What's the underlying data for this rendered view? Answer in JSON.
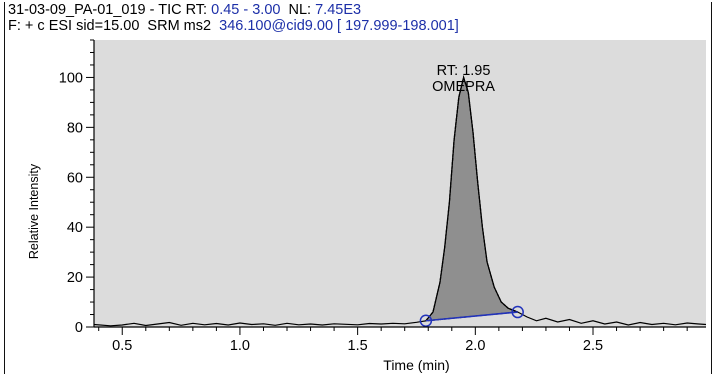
{
  "header": {
    "line1_prefix": "31-03-09_PA-01_019 - TIC RT: ",
    "rt_range": "0.45 - 3.00",
    "nl_label": "  NL: ",
    "nl_value": "7.45E3",
    "line2_prefix": "F: + c ESI sid=15.00  SRM ms2  ",
    "line2_value": "346.100@cid9.00 [ 197.999-198.001]"
  },
  "colors": {
    "plot_background": "#dcdcdc",
    "peak_fill": "#8f8f8f",
    "baseline_marker": "#2233bb",
    "trace": "#000000"
  },
  "chart_data": {
    "type": "area",
    "xlabel": "Time (min)",
    "ylabel": "Relative Intensity",
    "xlim": [
      0.38,
      2.98
    ],
    "ylim": [
      0,
      115
    ],
    "xticks": [
      "0.5",
      "1.0",
      "1.5",
      "2.0",
      "2.5"
    ],
    "yticks": [
      "0",
      "20",
      "40",
      "60",
      "80",
      "100"
    ],
    "grid": false,
    "peak": {
      "rt_label": "RT: 1.95",
      "compound_label": "OMEPRA",
      "apex_time": 1.95,
      "apex_intensity": 100,
      "baseline_start": [
        1.79,
        2.5
      ],
      "baseline_end": [
        2.18,
        6
      ]
    },
    "series": [
      {
        "x": [
          0.38,
          0.45,
          0.5,
          0.55,
          0.6,
          0.65,
          0.7,
          0.75,
          0.8,
          0.85,
          0.9,
          0.95,
          1.0,
          1.05,
          1.1,
          1.15,
          1.2,
          1.25,
          1.3,
          1.35,
          1.4,
          1.45,
          1.5,
          1.55,
          1.6,
          1.65,
          1.7,
          1.75,
          1.79,
          1.82,
          1.85,
          1.87,
          1.89,
          1.91,
          1.93,
          1.95,
          1.97,
          1.99,
          2.01,
          2.03,
          2.05,
          2.08,
          2.11,
          2.14,
          2.18,
          2.22,
          2.26,
          2.3,
          2.35,
          2.4,
          2.45,
          2.5,
          2.55,
          2.6,
          2.65,
          2.7,
          2.75,
          2.8,
          2.85,
          2.9,
          2.95,
          2.98
        ],
        "y": [
          1,
          0.5,
          0.8,
          1.5,
          0.6,
          1.2,
          1.8,
          0.7,
          1.5,
          0.9,
          1.4,
          0.8,
          1.6,
          1,
          1.3,
          0.7,
          1.5,
          0.9,
          1.2,
          0.8,
          1.3,
          1.1,
          0.9,
          1.4,
          1.2,
          1.5,
          1.3,
          1.9,
          2.5,
          6,
          18,
          32,
          50,
          75,
          92,
          100,
          94,
          78,
          58,
          40,
          26,
          16,
          10,
          7.5,
          6,
          4,
          2.5,
          3.5,
          2,
          3,
          1.5,
          2.5,
          1.2,
          2,
          0.8,
          1.8,
          1,
          1.5,
          0.9,
          1.6,
          1.2,
          1
        ]
      }
    ]
  }
}
